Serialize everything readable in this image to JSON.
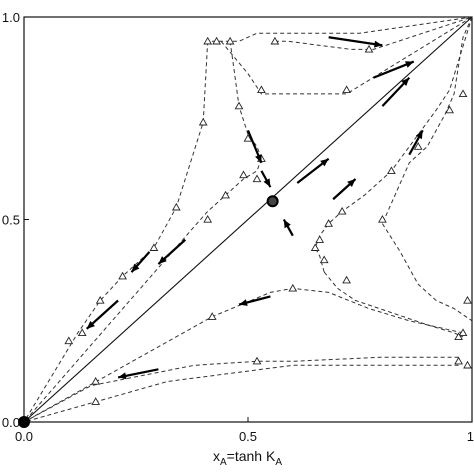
{
  "chart_data": {
    "type": "line",
    "title": "",
    "xlabel": "x",
    "xlabel_sub": "A",
    "xlabel_eq": "=tanh K",
    "xlabel_eq_sub": "A",
    "ylabel": "",
    "xlim": [
      0,
      1
    ],
    "ylim": [
      0,
      1
    ],
    "x_ticks": [
      {
        "value": 0.0,
        "label": "0.0"
      },
      {
        "value": 0.5,
        "label": "0.5"
      },
      {
        "value": 1.0,
        "label": "1"
      }
    ],
    "y_ticks": [
      {
        "value": 0.0,
        "label": "0.0"
      },
      {
        "value": 0.5,
        "label": "0.5"
      },
      {
        "value": 1.0,
        "label": "1.0"
      }
    ],
    "grid": false,
    "diagonal": {
      "x": [
        0,
        1
      ],
      "y": [
        0,
        1
      ]
    },
    "fixed_points": [
      {
        "x": 0.0,
        "y": 0.0,
        "style": "filled"
      },
      {
        "x": 0.555,
        "y": 0.545,
        "style": "ring"
      }
    ],
    "trajectories": [
      {
        "x": [
          1.0,
          0.75,
          0.52,
          0.48,
          0.46,
          0.44,
          0.42,
          0.41
        ],
        "y": [
          1.0,
          0.96,
          0.96,
          0.94,
          0.94,
          0.94,
          0.94,
          0.94
        ]
      },
      {
        "x": [
          0.41,
          0.4,
          0.34,
          0.29,
          0.22,
          0.17,
          0.12,
          0.0
        ],
        "y": [
          0.94,
          0.74,
          0.53,
          0.43,
          0.36,
          0.3,
          0.22,
          0.0
        ]
      },
      {
        "x": [
          0.46,
          0.47,
          0.48,
          0.5,
          0.52,
          0.53
        ],
        "y": [
          0.94,
          0.86,
          0.78,
          0.71,
          0.68,
          0.65
        ]
      },
      {
        "x": [
          0.53,
          0.52,
          0.49,
          0.45,
          0.41,
          0.37,
          0.0
        ],
        "y": [
          0.65,
          0.62,
          0.6,
          0.56,
          0.52,
          0.47,
          0.0
        ]
      },
      {
        "x": [
          0.44,
          0.5,
          0.53,
          0.72,
          1.0
        ],
        "y": [
          0.94,
          0.86,
          0.81,
          0.81,
          1.0
        ]
      },
      {
        "x": [
          0.56,
          0.59,
          0.73,
          0.78,
          1.0
        ],
        "y": [
          0.94,
          0.94,
          0.92,
          0.92,
          1.0
        ]
      },
      {
        "x": [
          1.0,
          0.98,
          0.96,
          0.94,
          0.9,
          0.86,
          0.82,
          0.8
        ],
        "y": [
          1.0,
          0.95,
          0.81,
          0.76,
          0.68,
          0.64,
          0.54,
          0.49
        ]
      },
      {
        "x": [
          0.8,
          0.84,
          0.88,
          0.92,
          0.96,
          1.0
        ],
        "y": [
          0.49,
          0.42,
          0.34,
          0.3,
          0.28,
          0.25
        ]
      },
      {
        "x": [
          1.0,
          0.95,
          0.92,
          0.9,
          0.86,
          0.82,
          0.76,
          0.71,
          0.68,
          0.66,
          0.65,
          0.66,
          0.67
        ],
        "y": [
          1.0,
          0.82,
          0.77,
          0.74,
          0.68,
          0.62,
          0.56,
          0.52,
          0.49,
          0.46,
          0.43,
          0.41,
          0.37
        ]
      },
      {
        "x": [
          0.67,
          0.7,
          0.74,
          0.82,
          0.9,
          0.96,
          0.98
        ],
        "y": [
          0.37,
          0.33,
          0.3,
          0.27,
          0.24,
          0.22,
          0.21
        ]
      },
      {
        "x": [
          0.98,
          0.86,
          0.77,
          0.68,
          0.6,
          0.55,
          0.42,
          0.0
        ],
        "y": [
          0.22,
          0.25,
          0.28,
          0.32,
          0.33,
          0.32,
          0.26,
          0.0
        ]
      },
      {
        "x": [
          0.97,
          0.8,
          0.6,
          0.52,
          0.38,
          0.15,
          0.0
        ],
        "y": [
          0.16,
          0.16,
          0.15,
          0.15,
          0.14,
          0.09,
          0.0
        ]
      },
      {
        "x": [
          0.97,
          0.6,
          0.32,
          0.16,
          0.0
        ],
        "y": [
          0.14,
          0.14,
          0.1,
          0.05,
          0.0
        ]
      }
    ],
    "markers": [
      [
        0.41,
        0.94
      ],
      [
        0.43,
        0.94
      ],
      [
        0.46,
        0.94
      ],
      [
        0.56,
        0.94
      ],
      [
        0.77,
        0.92
      ],
      [
        0.4,
        0.74
      ],
      [
        0.34,
        0.53
      ],
      [
        0.29,
        0.43
      ],
      [
        0.22,
        0.36
      ],
      [
        0.17,
        0.3
      ],
      [
        0.48,
        0.78
      ],
      [
        0.5,
        0.7
      ],
      [
        0.53,
        0.65
      ],
      [
        0.52,
        0.6
      ],
      [
        0.49,
        0.61
      ],
      [
        0.45,
        0.56
      ],
      [
        0.41,
        0.5
      ],
      [
        0.53,
        0.82
      ],
      [
        0.72,
        0.82
      ],
      [
        0.98,
        0.81
      ],
      [
        0.95,
        0.77
      ],
      [
        0.88,
        0.68
      ],
      [
        0.82,
        0.62
      ],
      [
        0.71,
        0.52
      ],
      [
        0.68,
        0.49
      ],
      [
        0.66,
        0.45
      ],
      [
        0.65,
        0.43
      ],
      [
        0.67,
        0.4
      ],
      [
        0.72,
        0.35
      ],
      [
        0.8,
        0.5
      ],
      [
        0.99,
        0.3
      ],
      [
        0.98,
        0.22
      ],
      [
        0.97,
        0.21
      ],
      [
        0.6,
        0.33
      ],
      [
        0.42,
        0.26
      ],
      [
        0.13,
        0.22
      ],
      [
        0.1,
        0.2
      ],
      [
        0.52,
        0.15
      ],
      [
        0.97,
        0.15
      ],
      [
        0.16,
        0.1
      ],
      [
        0.99,
        0.14
      ],
      [
        0.16,
        0.05
      ]
    ],
    "arrows": [
      {
        "from": [
          0.68,
          0.95
        ],
        "to": [
          0.8,
          0.93
        ]
      },
      {
        "from": [
          0.78,
          0.85
        ],
        "to": [
          0.87,
          0.89
        ]
      },
      {
        "from": [
          0.28,
          0.42
        ],
        "to": [
          0.24,
          0.37
        ]
      },
      {
        "from": [
          0.36,
          0.45
        ],
        "to": [
          0.3,
          0.39
        ]
      },
      {
        "from": [
          0.21,
          0.3
        ],
        "to": [
          0.14,
          0.23
        ]
      },
      {
        "from": [
          0.61,
          0.59
        ],
        "to": [
          0.68,
          0.65
        ]
      },
      {
        "from": [
          0.8,
          0.78
        ],
        "to": [
          0.86,
          0.85
        ]
      },
      {
        "from": [
          0.69,
          0.55
        ],
        "to": [
          0.74,
          0.6
        ]
      },
      {
        "from": [
          0.86,
          0.66
        ],
        "to": [
          0.89,
          0.72
        ]
      },
      {
        "from": [
          0.55,
          0.31
        ],
        "to": [
          0.48,
          0.29
        ]
      },
      {
        "from": [
          0.3,
          0.13
        ],
        "to": [
          0.21,
          0.11
        ]
      },
      {
        "from": [
          0.53,
          0.62
        ],
        "to": [
          0.55,
          0.58
        ]
      },
      {
        "from": [
          0.6,
          0.46
        ],
        "to": [
          0.58,
          0.5
        ]
      },
      {
        "from": [
          0.5,
          0.72
        ],
        "to": [
          0.53,
          0.64
        ]
      }
    ]
  }
}
